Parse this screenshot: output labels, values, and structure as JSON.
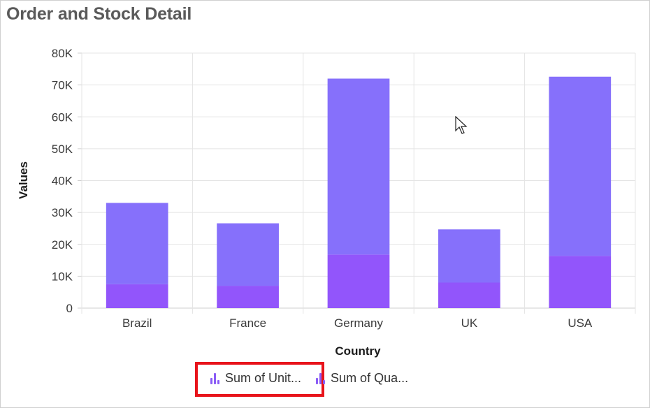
{
  "title": "Order and Stock Detail",
  "colors": {
    "series1": "#8670fb",
    "series2": "#9255fb",
    "legend_icon": "#8a5cf6",
    "highlight": "#e8141b",
    "grid": "#e4e4e4"
  },
  "legend": {
    "items": [
      {
        "label": "Sum of Unit...",
        "icon": "bar-chart-icon"
      },
      {
        "label": "Sum of Qua...",
        "icon": "bar-chart-icon"
      }
    ]
  },
  "chart_data": {
    "type": "bar",
    "stacked": true,
    "categories": [
      "Brazil",
      "France",
      "Germany",
      "UK",
      "USA"
    ],
    "series": [
      {
        "name": "Sum of Qua...",
        "values": [
          7500,
          7000,
          16800,
          8000,
          16400
        ]
      },
      {
        "name": "Sum of Unit...",
        "values": [
          25500,
          19600,
          55200,
          16700,
          56200
        ]
      }
    ],
    "xlabel": "Country",
    "ylabel": "Values",
    "ylim": [
      0,
      80000
    ],
    "yticks": [
      "0",
      "10K",
      "20K",
      "30K",
      "40K",
      "50K",
      "60K",
      "70K",
      "80K"
    ],
    "grid": true,
    "legend_position": "bottom"
  }
}
